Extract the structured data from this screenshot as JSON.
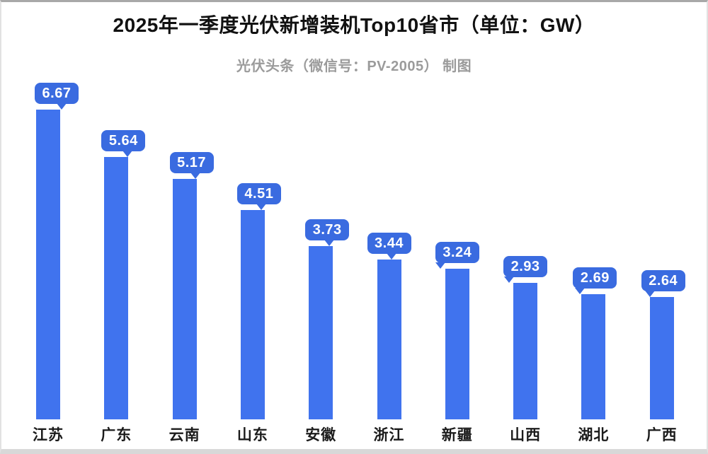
{
  "colors": {
    "bar": "#4073EE",
    "bubble": "#3A6BE0",
    "bubble_text": "#FFFFFF",
    "title_text": "#111111",
    "subtitle_text": "#9B9B9B",
    "label_text": "#1B1B1B",
    "background": "#FFFFFF",
    "frame_edge": "#D8D8D8"
  },
  "chart_data": {
    "type": "bar",
    "title": "2025年一季度光伏新增装机Top10省市（单位：GW）",
    "subtitle": "光伏头条（微信号：PV-2005） 制图",
    "unit": "GW",
    "categories": [
      "江苏",
      "广东",
      "云南",
      "山东",
      "安徽",
      "浙江",
      "新疆",
      "山西",
      "湖北",
      "广西"
    ],
    "values": [
      6.67,
      5.64,
      5.17,
      4.51,
      3.73,
      3.44,
      3.24,
      2.93,
      2.69,
      2.64
    ],
    "ylim": [
      0,
      7
    ],
    "grid": false,
    "axes_visible": false,
    "legend": "none",
    "value_labels": "speech-bubble above each bar"
  }
}
